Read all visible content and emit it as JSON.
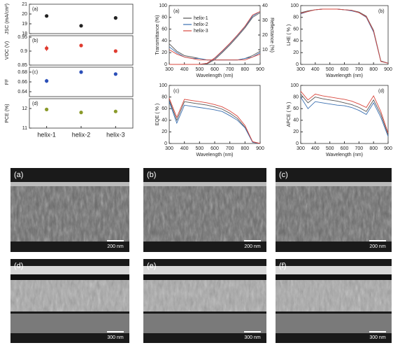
{
  "chart_data": [
    {
      "type": "errorbar",
      "categories": [
        "helix-1",
        "helix-2",
        "helix-3"
      ],
      "panels": [
        {
          "panel_label": "(a)",
          "ylabel": "JSC (mA/cm²)",
          "ylim": [
            18,
            21
          ],
          "yticks": [
            18,
            19,
            20,
            21
          ],
          "values": [
            19.8,
            18.8,
            19.6
          ],
          "errors": [
            0.15,
            0.12,
            0.15
          ],
          "color": "#222222"
        },
        {
          "panel_label": "(b)",
          "ylabel": "VOC (V)",
          "ylim": [
            0.85,
            0.955
          ],
          "yticks": [
            0.85,
            0.9,
            0.95
          ],
          "values": [
            0.91,
            0.92,
            0.9
          ],
          "errors": [
            0.01,
            0.005,
            0.005
          ],
          "color": "#e03b2f"
        },
        {
          "panel_label": "(c)",
          "ylabel": "FF",
          "ylim": [
            0.63,
            0.69
          ],
          "yticks": [
            0.64,
            0.66,
            0.68
          ],
          "values": [
            0.662,
            0.68,
            0.676
          ],
          "errors": [
            0.004,
            0.002,
            0.003
          ],
          "color": "#2b4fb8"
        },
        {
          "panel_label": "(d)",
          "ylabel": "PCE (%)",
          "ylim": [
            11,
            12.5
          ],
          "yticks": [
            11,
            12
          ],
          "values": [
            11.95,
            11.8,
            11.85
          ],
          "errors": [
            0.05,
            0.04,
            0.06
          ],
          "color": "#8a9a2a"
        }
      ]
    },
    {
      "type": "line",
      "panel_label": "(a)",
      "xlabel": "Wavelength (nm)",
      "ylabel": "Transmittance (%)",
      "y2label": "Reflectance (%)",
      "x": [
        300,
        350,
        400,
        450,
        500,
        550,
        600,
        650,
        700,
        750,
        800,
        850,
        900
      ],
      "xlim": [
        300,
        900
      ],
      "xticks": [
        300,
        400,
        500,
        600,
        700,
        800,
        900
      ],
      "ylim": [
        0,
        100
      ],
      "yticks": [
        0,
        20,
        40,
        60,
        80,
        100
      ],
      "y2lim": [
        0,
        40
      ],
      "y2ticks": [
        10,
        20,
        30,
        40
      ],
      "legend": "upper left",
      "series": [
        {
          "name": "helix-1",
          "color": "#555555",
          "values": [
            0,
            0,
            0,
            0,
            0,
            1,
            8,
            20,
            33,
            47,
            62,
            80,
            88
          ]
        },
        {
          "name": "helix-2",
          "color": "#3a6fb0",
          "values": [
            0,
            0,
            0,
            0,
            0,
            2,
            10,
            22,
            35,
            49,
            64,
            82,
            90
          ]
        },
        {
          "name": "helix-3",
          "color": "#d9473d",
          "values": [
            0,
            0,
            0,
            0,
            0,
            2,
            11,
            23,
            36,
            50,
            65,
            84,
            90
          ]
        },
        {
          "name": "helix-1",
          "color": "#555555",
          "axis": "y2",
          "values": [
            14,
            9,
            6,
            5,
            4,
            3,
            3,
            3,
            3,
            3,
            4,
            6,
            9
          ]
        },
        {
          "name": "helix-2",
          "color": "#3a6fb0",
          "axis": "y2",
          "values": [
            12,
            8,
            5,
            4,
            4,
            3,
            3,
            3,
            3,
            3,
            4,
            5,
            8
          ]
        },
        {
          "name": "helix-3",
          "color": "#d9473d",
          "axis": "y2",
          "values": [
            10,
            7,
            5,
            4,
            3,
            3,
            3,
            3,
            3,
            3,
            3,
            5,
            7
          ]
        }
      ]
    },
    {
      "type": "line",
      "panel_label": "(b)",
      "xlabel": "Wavelength (nm)",
      "ylabel": "LHE ( % )",
      "x": [
        300,
        350,
        400,
        450,
        500,
        550,
        600,
        650,
        700,
        750,
        800,
        850,
        900
      ],
      "xlim": [
        300,
        900
      ],
      "xticks": [
        300,
        400,
        500,
        600,
        700,
        800,
        900
      ],
      "ylim": [
        0,
        100
      ],
      "yticks": [
        0,
        20,
        40,
        60,
        80,
        100
      ],
      "series": [
        {
          "name": "helix-1",
          "color": "#555555",
          "values": [
            88,
            91,
            93,
            94,
            94,
            94,
            93,
            92,
            89,
            82,
            58,
            6,
            2
          ]
        },
        {
          "name": "helix-2",
          "color": "#3a6fb0",
          "values": [
            86,
            90,
            93,
            94,
            94,
            94,
            93,
            91,
            88,
            80,
            55,
            5,
            2
          ]
        },
        {
          "name": "helix-3",
          "color": "#d9473d",
          "values": [
            87,
            90,
            93,
            94,
            94,
            94,
            93,
            92,
            88,
            81,
            57,
            5,
            2
          ]
        }
      ]
    },
    {
      "type": "line",
      "panel_label": "(c)",
      "xlabel": "Wavelength (nm)",
      "ylabel": "EQE ( % )",
      "x": [
        300,
        350,
        400,
        450,
        500,
        550,
        600,
        650,
        700,
        750,
        800,
        850,
        900
      ],
      "xlim": [
        300,
        900
      ],
      "xticks": [
        300,
        400,
        500,
        600,
        700,
        800,
        900
      ],
      "ylim": [
        0,
        100
      ],
      "yticks": [
        0,
        20,
        40,
        60,
        80,
        100
      ],
      "series": [
        {
          "name": "helix-1",
          "color": "#555555",
          "values": [
            75,
            40,
            72,
            70,
            68,
            66,
            63,
            59,
            52,
            43,
            28,
            3,
            0
          ]
        },
        {
          "name": "helix-2",
          "color": "#3a6fb0",
          "values": [
            72,
            35,
            66,
            64,
            62,
            60,
            58,
            55,
            48,
            40,
            27,
            2,
            0
          ]
        },
        {
          "name": "helix-3",
          "color": "#d9473d",
          "values": [
            78,
            45,
            76,
            74,
            72,
            70,
            67,
            63,
            56,
            47,
            31,
            3,
            0
          ]
        }
      ]
    },
    {
      "type": "line",
      "panel_label": "(d)",
      "xlabel": "Wavelength (nm)",
      "ylabel": "APCE ( % )",
      "x": [
        300,
        350,
        400,
        450,
        500,
        550,
        600,
        650,
        700,
        750,
        800,
        850,
        900
      ],
      "xlim": [
        300,
        900
      ],
      "xticks": [
        300,
        400,
        500,
        600,
        700,
        800,
        900
      ],
      "ylim": [
        0,
        100
      ],
      "yticks": [
        0,
        20,
        40,
        60,
        80,
        100
      ],
      "series": [
        {
          "name": "helix-1",
          "color": "#555555",
          "values": [
            85,
            70,
            80,
            77,
            75,
            73,
            70,
            67,
            62,
            55,
            75,
            50,
            15
          ]
        },
        {
          "name": "helix-2",
          "color": "#3a6fb0",
          "values": [
            80,
            60,
            72,
            70,
            68,
            66,
            65,
            62,
            57,
            50,
            70,
            45,
            12
          ]
        },
        {
          "name": "helix-3",
          "color": "#d9473d",
          "values": [
            90,
            75,
            85,
            82,
            80,
            78,
            76,
            73,
            68,
            62,
            82,
            55,
            18
          ]
        }
      ]
    }
  ],
  "micrographs": [
    {
      "label": "(a)",
      "scale": "200 nm"
    },
    {
      "label": "(b)",
      "scale": "200 nm"
    },
    {
      "label": "(c)",
      "scale": "200 nm"
    },
    {
      "label": "(d)",
      "scale": "300 nm"
    },
    {
      "label": "(e)",
      "scale": "300 nm"
    },
    {
      "label": "(f)",
      "scale": "300 nm"
    }
  ]
}
